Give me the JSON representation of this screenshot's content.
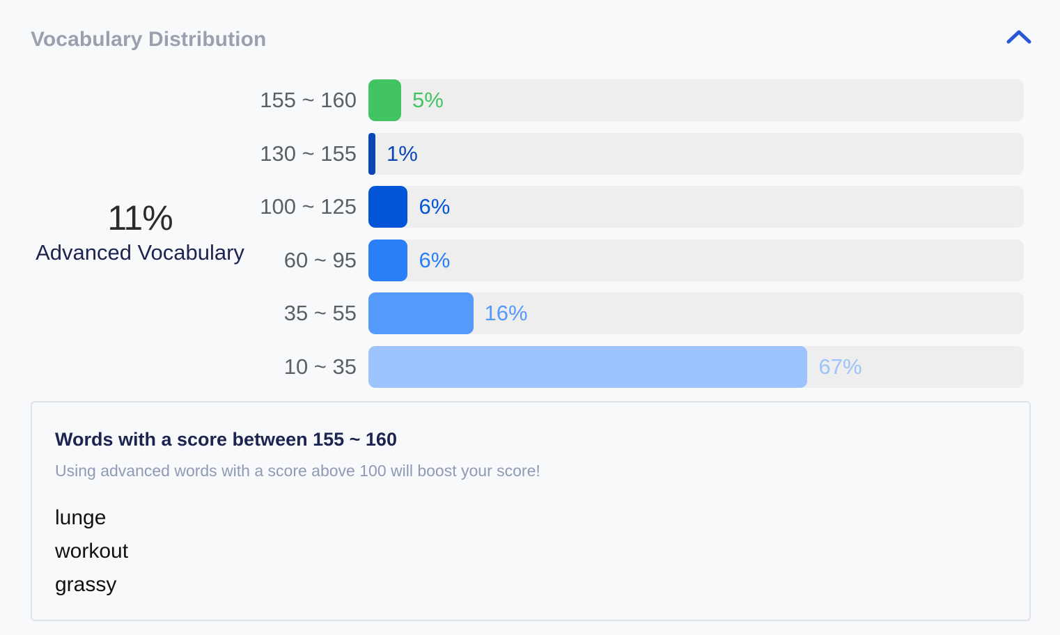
{
  "panel": {
    "title": "Vocabulary Distribution"
  },
  "summary": {
    "value": "11%",
    "label": "Advanced Vocabulary"
  },
  "chart_data": {
    "type": "bar",
    "orientation": "horizontal",
    "categories": [
      "155 ~ 160",
      "130 ~ 155",
      "100 ~ 125",
      "60 ~ 95",
      "35 ~ 55",
      "10 ~ 35"
    ],
    "values": [
      5,
      1,
      6,
      6,
      16,
      67
    ],
    "value_labels": [
      "5%",
      "1%",
      "6%",
      "6%",
      "16%",
      "67%"
    ],
    "colors": [
      "#43c463",
      "#0a47b5",
      "#0155d6",
      "#2a7ff8",
      "#5599fb",
      "#9cc3fb"
    ],
    "label_colors": [
      "#43c463",
      "#0a47b5",
      "#0155d6",
      "#2a7ff8",
      "#5599fb",
      "#9cc3fb"
    ],
    "track_color": "#eeeeee",
    "xlim": [
      0,
      100
    ]
  },
  "words": {
    "title": "Words with a score between 155 ~ 160",
    "hint": "Using advanced words with a score above 100 will boost your score!",
    "items": [
      "lunge",
      "workout",
      "grassy"
    ]
  },
  "icons": {
    "collapse": "chevron-up-icon"
  },
  "colors": {
    "accent": "#2b56d6",
    "heading": "#1c2450",
    "muted": "#9aa0ad"
  }
}
